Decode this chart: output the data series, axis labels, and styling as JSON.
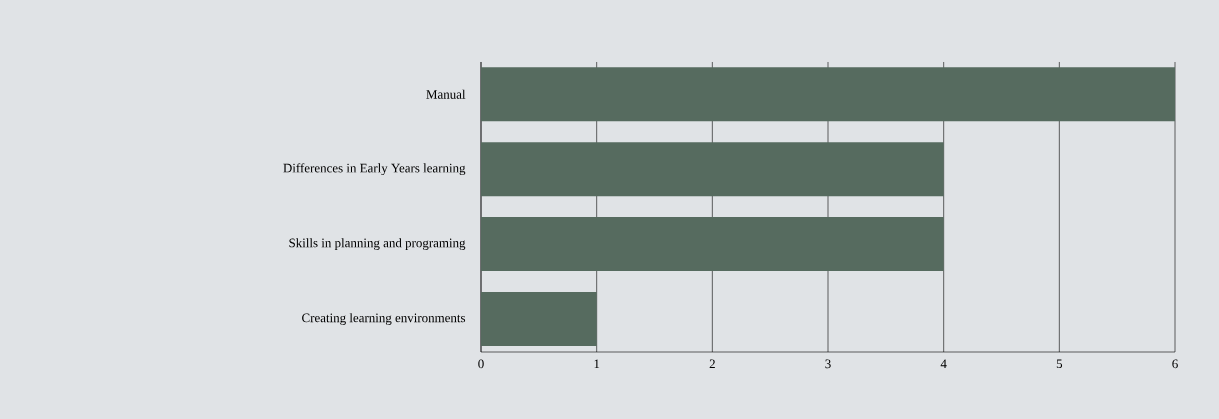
{
  "chart_data": {
    "type": "bar",
    "orientation": "horizontal",
    "categories": [
      "Manual",
      "Differences in Early Years learning",
      "Skills in planning and programing",
      "Creating learning environments"
    ],
    "values": [
      6,
      4,
      4,
      1
    ],
    "color": "#566b5f",
    "xlim": [
      0,
      6
    ],
    "xticks": [
      0,
      1,
      2,
      3,
      4,
      5,
      6
    ],
    "grid": "x"
  }
}
